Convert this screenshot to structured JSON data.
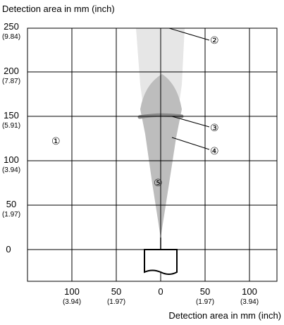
{
  "y_axis_title": "Detection area in mm (inch)",
  "x_axis_title": "Detection area in mm (inch)",
  "y_ticks": [
    {
      "value": "250",
      "inch": "(9.84)"
    },
    {
      "value": "200",
      "inch": "(7.87)"
    },
    {
      "value": "150",
      "inch": "(5.91)"
    },
    {
      "value": "100",
      "inch": "(3.94)"
    },
    {
      "value": "50",
      "inch": "(1.97)"
    },
    {
      "value": "0",
      "inch": ""
    }
  ],
  "x_ticks": [
    {
      "value": "100",
      "inch": "(3.94)"
    },
    {
      "value": "50",
      "inch": "(1.97)"
    },
    {
      "value": "0",
      "inch": ""
    },
    {
      "value": "50",
      "inch": "(1.97)"
    },
    {
      "value": "100",
      "inch": "(3.94)"
    }
  ],
  "callouts": {
    "c1": "①",
    "c2": "②",
    "c3": "③",
    "c4": "④",
    "c5": "⑤"
  },
  "colors": {
    "grid": "#000000",
    "outer_field": "#e6e6e6",
    "inner_field": "#bdbdbd",
    "reference_line": "#8a8a8a"
  }
}
